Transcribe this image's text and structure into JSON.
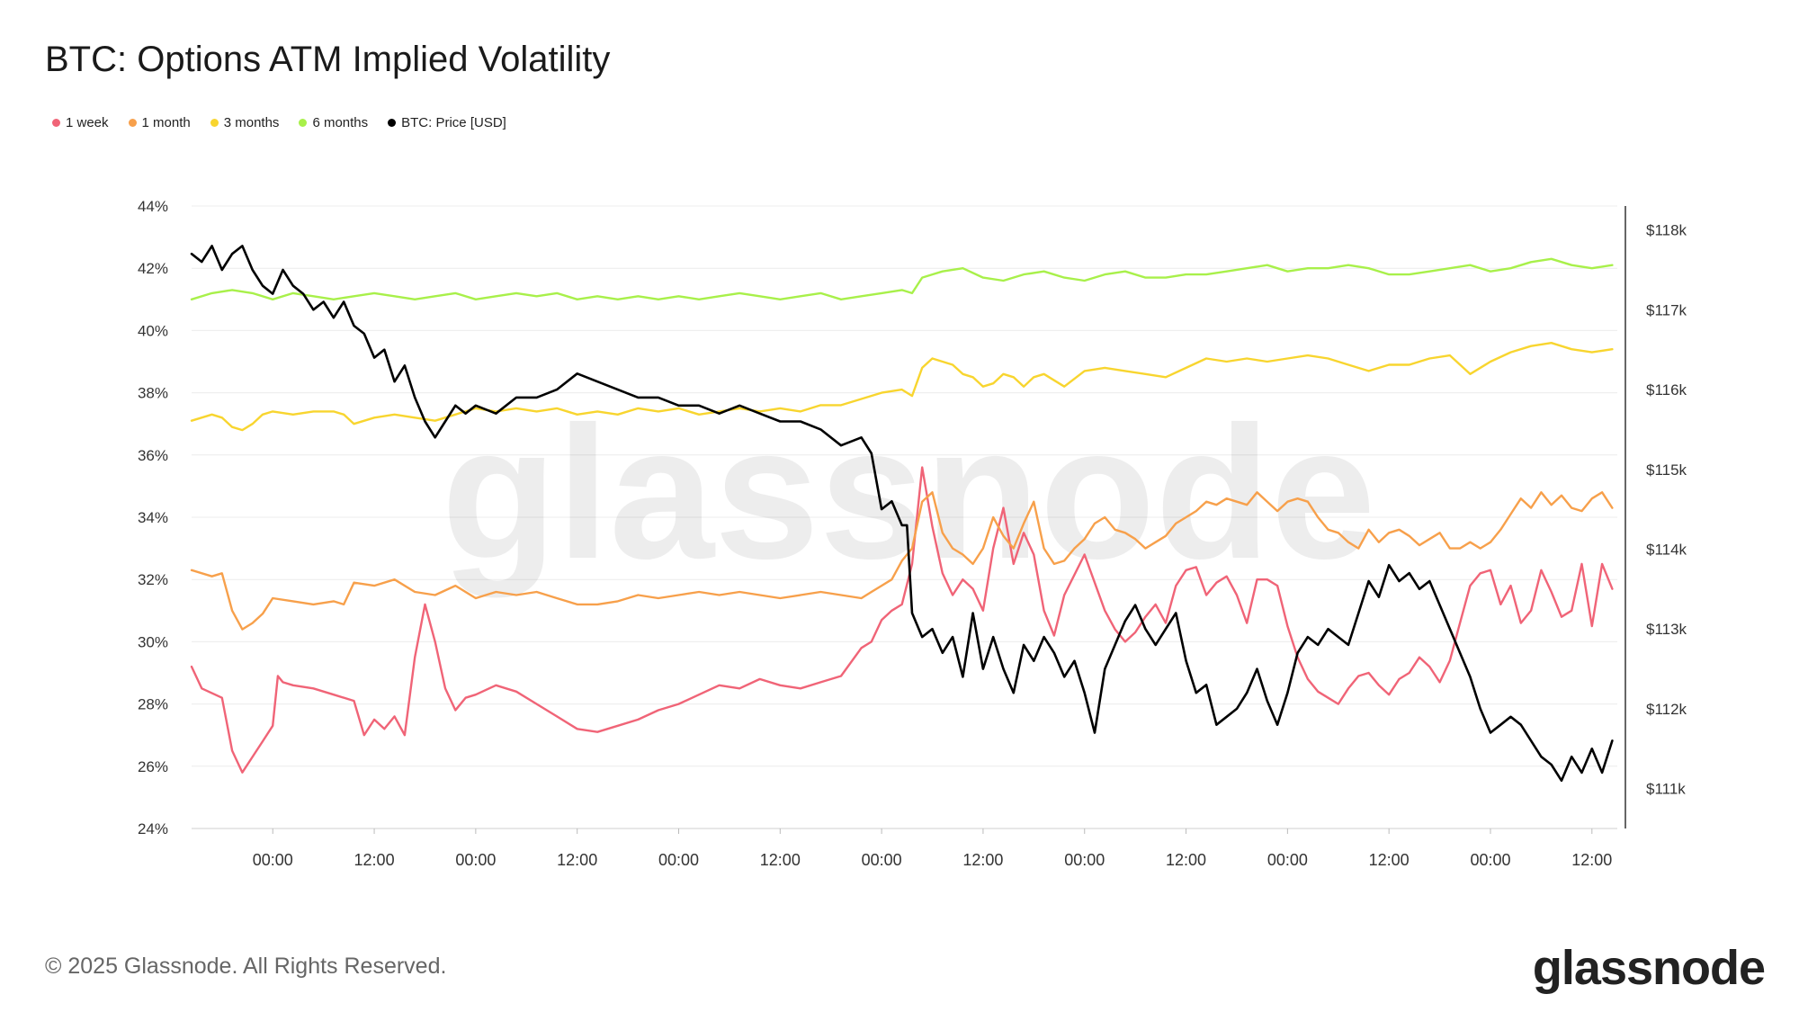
{
  "chart_data": {
    "type": "line",
    "title": "BTC: Options ATM Implied Volatility",
    "left_axis": {
      "min": 24,
      "max": 44,
      "ticks": [
        "44%",
        "42%",
        "40%",
        "38%",
        "36%",
        "34%",
        "32%",
        "30%",
        "28%",
        "26%",
        "24%"
      ],
      "tick_values": [
        44,
        42,
        40,
        38,
        36,
        34,
        32,
        30,
        28,
        26,
        24
      ]
    },
    "right_axis": {
      "min": 110.5,
      "max": 118.3,
      "ticks": [
        "$118k",
        "$117k",
        "$116k",
        "$115k",
        "$114k",
        "$113k",
        "$112k",
        "$111k"
      ],
      "tick_values": [
        118,
        117,
        116,
        115,
        114,
        113,
        112,
        111
      ]
    },
    "x_axis": {
      "min": 0,
      "max": 140.5,
      "ticks": [
        "00:00",
        "12:00",
        "00:00",
        "12:00",
        "00:00",
        "12:00",
        "00:00",
        "12:00",
        "00:00",
        "12:00",
        "00:00",
        "12:00",
        "00:00",
        "12:00"
      ],
      "tick_hours": [
        8,
        18,
        28,
        38,
        48,
        58,
        68,
        78,
        88,
        98,
        108,
        118,
        128,
        138
      ]
    },
    "x_unit": "hours since chart start",
    "series": [
      {
        "name": "1 week",
        "color": "#f06477",
        "axis": "left",
        "x": [
          0,
          1,
          3,
          4,
          5,
          6,
          7,
          8,
          8.5,
          9,
          10,
          12,
          14,
          16,
          17,
          18,
          19,
          20,
          21,
          22,
          23,
          24,
          25,
          26,
          27,
          28,
          30,
          32,
          34,
          36,
          38,
          40,
          42,
          44,
          46,
          48,
          50,
          52,
          54,
          56,
          58,
          60,
          62,
          64,
          66,
          67,
          68,
          69,
          70,
          71,
          72,
          73,
          74,
          75,
          76,
          77,
          78,
          79,
          80,
          81,
          82,
          83,
          84,
          85,
          86,
          88,
          90,
          91,
          92,
          93,
          94,
          95,
          96,
          97,
          98,
          99,
          100,
          101,
          102,
          103,
          104,
          105,
          106,
          107,
          108,
          109,
          110,
          111,
          112,
          113,
          114,
          115,
          116,
          117,
          118,
          119,
          120,
          121,
          122,
          123,
          124,
          125,
          126,
          127,
          128,
          129,
          130,
          131,
          132,
          133,
          134,
          135,
          136,
          137,
          138,
          139,
          140
        ],
        "values": [
          29.2,
          28.5,
          28.2,
          26.5,
          25.8,
          26.3,
          26.8,
          27.3,
          28.9,
          28.7,
          28.6,
          28.5,
          28.3,
          28.1,
          27.0,
          27.5,
          27.2,
          27.6,
          27.0,
          29.5,
          31.2,
          30.0,
          28.5,
          27.8,
          28.2,
          28.3,
          28.6,
          28.4,
          28.0,
          27.6,
          27.2,
          27.1,
          27.3,
          27.5,
          27.8,
          28.0,
          28.3,
          28.6,
          28.5,
          28.8,
          28.6,
          28.5,
          28.7,
          28.9,
          29.8,
          30.0,
          30.7,
          31.0,
          31.2,
          32.5,
          35.6,
          33.7,
          32.2,
          31.5,
          32.0,
          31.7,
          31.0,
          33.0,
          34.3,
          32.5,
          33.5,
          32.8,
          31.0,
          30.2,
          31.5,
          32.8,
          31.0,
          30.4,
          30.0,
          30.3,
          30.8,
          31.2,
          30.6,
          31.8,
          32.3,
          32.4,
          31.5,
          31.9,
          32.1,
          31.5,
          30.6,
          32.0,
          32.0,
          31.8,
          30.5,
          29.5,
          28.8,
          28.4,
          28.2,
          28.0,
          28.5,
          28.9,
          29.0,
          28.6,
          28.3,
          28.8,
          29.0,
          29.5,
          29.2,
          28.7,
          29.4,
          30.6,
          31.8,
          32.2,
          32.3,
          31.2,
          31.8,
          30.6,
          31.0,
          32.3,
          31.6,
          30.8,
          31.0,
          32.5,
          30.5,
          32.5,
          31.7
        ]
      },
      {
        "name": "1 month",
        "color": "#f7a04b",
        "axis": "left",
        "x": [
          0,
          2,
          3,
          4,
          5,
          6,
          7,
          8,
          10,
          12,
          14,
          15,
          16,
          18,
          20,
          22,
          24,
          26,
          28,
          30,
          32,
          34,
          36,
          38,
          40,
          42,
          44,
          46,
          48,
          50,
          52,
          54,
          56,
          58,
          60,
          62,
          64,
          66,
          67,
          68,
          69,
          70,
          71,
          72,
          73,
          74,
          75,
          76,
          77,
          78,
          79,
          80,
          81,
          82,
          83,
          84,
          85,
          86,
          87,
          88,
          89,
          90,
          91,
          92,
          93,
          94,
          95,
          96,
          97,
          98,
          99,
          100,
          101,
          102,
          103,
          104,
          105,
          106,
          107,
          108,
          109,
          110,
          111,
          112,
          113,
          114,
          115,
          116,
          117,
          118,
          119,
          120,
          121,
          122,
          123,
          124,
          125,
          126,
          127,
          128,
          129,
          130,
          131,
          132,
          133,
          134,
          135,
          136,
          137,
          138,
          139,
          140
        ],
        "values": [
          32.3,
          32.1,
          32.2,
          31.0,
          30.4,
          30.6,
          30.9,
          31.4,
          31.3,
          31.2,
          31.3,
          31.2,
          31.9,
          31.8,
          32.0,
          31.6,
          31.5,
          31.8,
          31.4,
          31.6,
          31.5,
          31.6,
          31.4,
          31.2,
          31.2,
          31.3,
          31.5,
          31.4,
          31.5,
          31.6,
          31.5,
          31.6,
          31.5,
          31.4,
          31.5,
          31.6,
          31.5,
          31.4,
          31.6,
          31.8,
          32.0,
          32.6,
          33.0,
          34.5,
          34.8,
          33.5,
          33.0,
          32.8,
          32.5,
          33.0,
          34.0,
          33.4,
          33.0,
          33.8,
          34.5,
          33.0,
          32.5,
          32.6,
          33.0,
          33.3,
          33.8,
          34.0,
          33.6,
          33.5,
          33.3,
          33.0,
          33.2,
          33.4,
          33.8,
          34.0,
          34.2,
          34.5,
          34.4,
          34.6,
          34.5,
          34.4,
          34.8,
          34.5,
          34.2,
          34.5,
          34.6,
          34.5,
          34.0,
          33.6,
          33.5,
          33.2,
          33.0,
          33.6,
          33.2,
          33.5,
          33.6,
          33.4,
          33.1,
          33.3,
          33.5,
          33.0,
          33.0,
          33.2,
          33.0,
          33.2,
          33.6,
          34.1,
          34.6,
          34.3,
          34.8,
          34.4,
          34.7,
          34.3,
          34.2,
          34.6,
          34.8,
          34.3
        ]
      },
      {
        "name": "3 months",
        "color": "#f8d52f",
        "axis": "left",
        "x": [
          0,
          2,
          3,
          4,
          5,
          6,
          7,
          8,
          10,
          12,
          14,
          15,
          16,
          18,
          20,
          22,
          24,
          26,
          28,
          30,
          32,
          34,
          36,
          38,
          40,
          42,
          44,
          46,
          48,
          50,
          52,
          54,
          56,
          58,
          60,
          62,
          64,
          66,
          68,
          70,
          71,
          72,
          73,
          74,
          75,
          76,
          77,
          78,
          79,
          80,
          81,
          82,
          83,
          84,
          86,
          88,
          90,
          92,
          94,
          96,
          98,
          100,
          102,
          104,
          106,
          108,
          110,
          112,
          114,
          116,
          118,
          120,
          122,
          124,
          126,
          128,
          130,
          132,
          134,
          136,
          138,
          140
        ],
        "values": [
          37.1,
          37.3,
          37.2,
          36.9,
          36.8,
          37.0,
          37.3,
          37.4,
          37.3,
          37.4,
          37.4,
          37.3,
          37.0,
          37.2,
          37.3,
          37.2,
          37.1,
          37.3,
          37.5,
          37.4,
          37.5,
          37.4,
          37.5,
          37.3,
          37.4,
          37.3,
          37.5,
          37.4,
          37.5,
          37.3,
          37.4,
          37.5,
          37.4,
          37.5,
          37.4,
          37.6,
          37.6,
          37.8,
          38.0,
          38.1,
          37.9,
          38.8,
          39.1,
          39.0,
          38.9,
          38.6,
          38.5,
          38.2,
          38.3,
          38.6,
          38.5,
          38.2,
          38.5,
          38.6,
          38.2,
          38.7,
          38.8,
          38.7,
          38.6,
          38.5,
          38.8,
          39.1,
          39.0,
          39.1,
          39.0,
          39.1,
          39.2,
          39.1,
          38.9,
          38.7,
          38.9,
          38.9,
          39.1,
          39.2,
          38.6,
          39.0,
          39.3,
          39.5,
          39.6,
          39.4,
          39.3,
          39.4
        ]
      },
      {
        "name": "6 months",
        "color": "#a8f04a",
        "axis": "left",
        "x": [
          0,
          2,
          4,
          6,
          8,
          10,
          12,
          14,
          16,
          18,
          20,
          22,
          24,
          26,
          28,
          30,
          32,
          34,
          36,
          38,
          40,
          42,
          44,
          46,
          48,
          50,
          52,
          54,
          56,
          58,
          60,
          62,
          64,
          66,
          68,
          70,
          71,
          72,
          73,
          74,
          76,
          78,
          80,
          82,
          84,
          86,
          88,
          90,
          92,
          94,
          96,
          98,
          100,
          102,
          104,
          106,
          108,
          110,
          112,
          114,
          116,
          118,
          120,
          122,
          124,
          126,
          128,
          130,
          132,
          134,
          136,
          138,
          140
        ],
        "values": [
          41.0,
          41.2,
          41.3,
          41.2,
          41.0,
          41.2,
          41.1,
          41.0,
          41.1,
          41.2,
          41.1,
          41.0,
          41.1,
          41.2,
          41.0,
          41.1,
          41.2,
          41.1,
          41.2,
          41.0,
          41.1,
          41.0,
          41.1,
          41.0,
          41.1,
          41.0,
          41.1,
          41.2,
          41.1,
          41.0,
          41.1,
          41.2,
          41.0,
          41.1,
          41.2,
          41.3,
          41.2,
          41.7,
          41.8,
          41.9,
          42.0,
          41.7,
          41.6,
          41.8,
          41.9,
          41.7,
          41.6,
          41.8,
          41.9,
          41.7,
          41.7,
          41.8,
          41.8,
          41.9,
          42.0,
          42.1,
          41.9,
          42.0,
          42.0,
          42.1,
          42.0,
          41.8,
          41.8,
          41.9,
          42.0,
          42.1,
          41.9,
          42.0,
          42.2,
          42.3,
          42.1,
          42.0,
          42.1
        ]
      },
      {
        "name": "BTC: Price [USD]",
        "color": "#000000",
        "axis": "right",
        "x": [
          0,
          1,
          2,
          3,
          4,
          5,
          6,
          7,
          8,
          9,
          10,
          11,
          12,
          13,
          14,
          15,
          16,
          17,
          18,
          19,
          20,
          21,
          22,
          23,
          24,
          25,
          26,
          27,
          28,
          30,
          32,
          34,
          36,
          38,
          40,
          42,
          44,
          46,
          48,
          50,
          52,
          54,
          56,
          58,
          60,
          62,
          64,
          66,
          67,
          68,
          69,
          70,
          70.5,
          71,
          72,
          73,
          74,
          75,
          76,
          77,
          78,
          79,
          80,
          81,
          82,
          83,
          84,
          85,
          86,
          87,
          88,
          89,
          90,
          91,
          92,
          93,
          94,
          95,
          96,
          97,
          98,
          99,
          100,
          101,
          102,
          103,
          104,
          105,
          106,
          107,
          108,
          109,
          110,
          111,
          112,
          113,
          114,
          115,
          116,
          117,
          118,
          119,
          120,
          121,
          122,
          123,
          124,
          125,
          126,
          127,
          128,
          129,
          130,
          131,
          132,
          133,
          134,
          135,
          136,
          137,
          138,
          139,
          140
        ],
        "values": [
          117.7,
          117.6,
          117.8,
          117.5,
          117.7,
          117.8,
          117.5,
          117.3,
          117.2,
          117.5,
          117.3,
          117.2,
          117.0,
          117.1,
          116.9,
          117.1,
          116.8,
          116.7,
          116.4,
          116.5,
          116.1,
          116.3,
          115.9,
          115.6,
          115.4,
          115.6,
          115.8,
          115.7,
          115.8,
          115.7,
          115.9,
          115.9,
          116.0,
          116.2,
          116.1,
          116.0,
          115.9,
          115.9,
          115.8,
          115.8,
          115.7,
          115.8,
          115.7,
          115.6,
          115.6,
          115.5,
          115.3,
          115.4,
          115.2,
          114.5,
          114.6,
          114.3,
          114.3,
          113.2,
          112.9,
          113.0,
          112.7,
          112.9,
          112.4,
          113.2,
          112.5,
          112.9,
          112.5,
          112.2,
          112.8,
          112.6,
          112.9,
          112.7,
          112.4,
          112.6,
          112.2,
          111.7,
          112.5,
          112.8,
          113.1,
          113.3,
          113.0,
          112.8,
          113.0,
          113.2,
          112.6,
          112.2,
          112.3,
          111.8,
          111.9,
          112.0,
          112.2,
          112.5,
          112.1,
          111.8,
          112.2,
          112.7,
          112.9,
          112.8,
          113.0,
          112.9,
          112.8,
          113.2,
          113.6,
          113.4,
          113.8,
          113.6,
          113.7,
          113.5,
          113.6,
          113.3,
          113.0,
          112.7,
          112.4,
          112.0,
          111.7,
          111.8,
          111.9,
          111.8,
          111.6,
          111.4,
          111.3,
          111.1,
          111.4,
          111.2,
          111.5,
          111.2,
          111.6
        ]
      }
    ]
  },
  "legend": [
    {
      "label": "1 week",
      "color": "#f06477"
    },
    {
      "label": "1 month",
      "color": "#f7a04b"
    },
    {
      "label": "3 months",
      "color": "#f8d52f"
    },
    {
      "label": "6 months",
      "color": "#a8f04a"
    },
    {
      "label": "BTC: Price [USD]",
      "color": "#000000"
    }
  ],
  "watermark": "glassnode",
  "footer": {
    "copyright": "© 2025 Glassnode. All Rights Reserved.",
    "brand": "glassnode"
  }
}
